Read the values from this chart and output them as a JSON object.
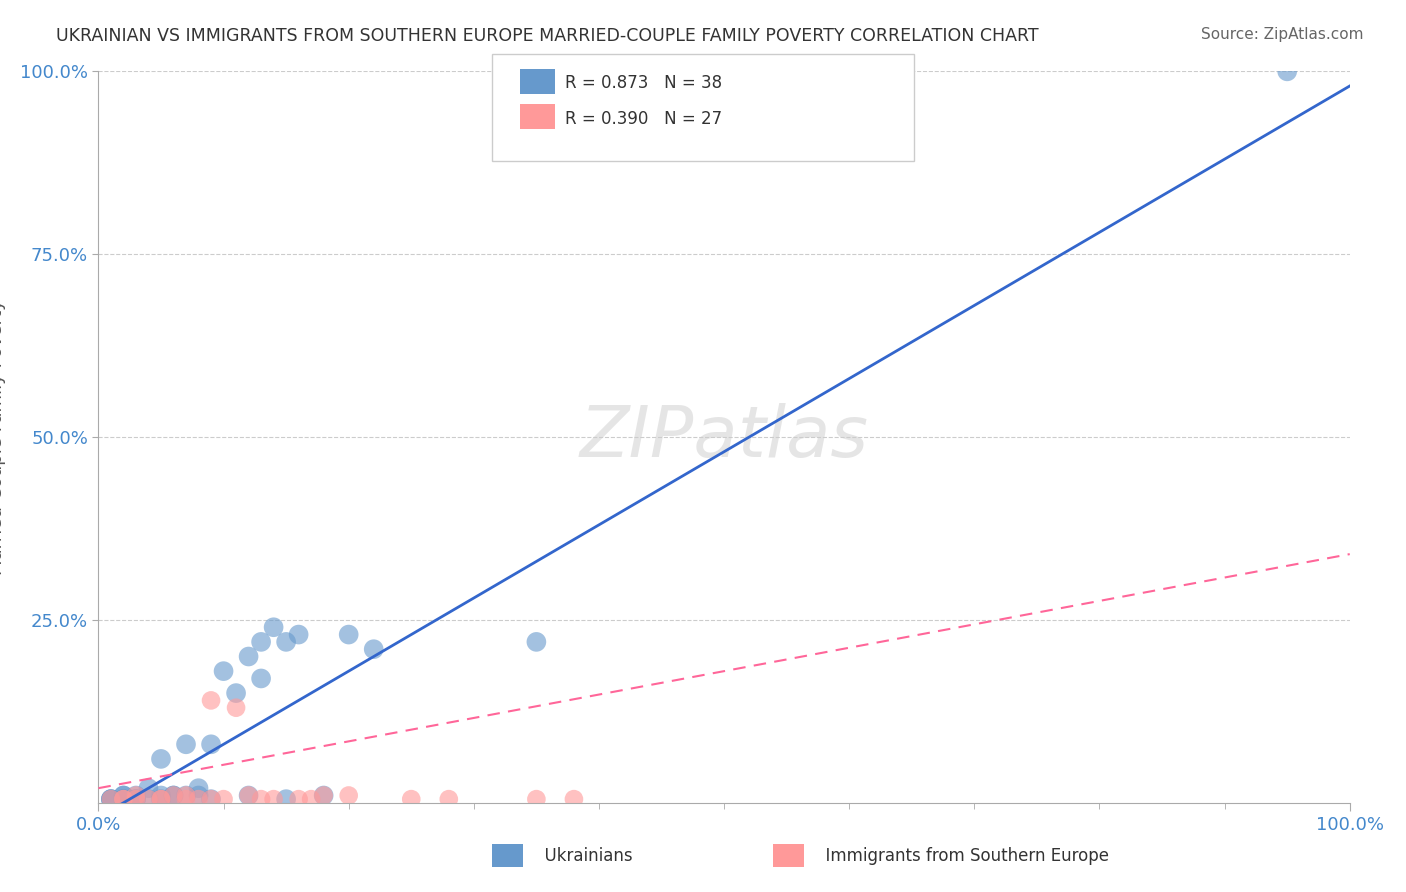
{
  "title": "UKRAINIAN VS IMMIGRANTS FROM SOUTHERN EUROPE MARRIED-COUPLE FAMILY POVERTY CORRELATION CHART",
  "source_text": "Source: ZipAtlas.com",
  "ylabel": "Married-Couple Family Poverty",
  "xlabel": "",
  "watermark": "ZIPatlas",
  "xlim": [
    0,
    1
  ],
  "ylim": [
    0,
    1
  ],
  "xtick_labels": [
    "0.0%",
    "100.0%"
  ],
  "ytick_labels": [
    "25.0%",
    "50.0%",
    "75.0%",
    "100.0%"
  ],
  "ytick_positions": [
    0.25,
    0.5,
    0.75,
    1.0
  ],
  "legend_R1": "R = 0.873",
  "legend_N1": "N = 38",
  "legend_R2": "R = 0.390",
  "legend_N2": "N = 27",
  "legend_label1": "Ukrainians",
  "legend_label2": "Immigrants from Southern Europe",
  "blue_color": "#6699CC",
  "pink_color": "#FF9999",
  "blue_line_color": "#3366CC",
  "pink_line_color": "#FF6699",
  "title_color": "#333333",
  "axis_label_color": "#555555",
  "tick_label_color": "#4488CC",
  "grid_color": "#CCCCCC",
  "watermark_color": "#CCCCCC",
  "blue_scatter_x": [
    0.02,
    0.03,
    0.04,
    0.05,
    0.01,
    0.02,
    0.03,
    0.06,
    0.08,
    0.1,
    0.12,
    0.13,
    0.14,
    0.15,
    0.16,
    0.05,
    0.07,
    0.09,
    0.11,
    0.13,
    0.02,
    0.04,
    0.06,
    0.08,
    0.2,
    0.22,
    0.35,
    0.01,
    0.03,
    0.05,
    0.07,
    0.09,
    0.12,
    0.15,
    0.18,
    0.01,
    0.02,
    0.95
  ],
  "blue_scatter_y": [
    0.01,
    0.01,
    0.02,
    0.01,
    0.005,
    0.01,
    0.005,
    0.01,
    0.02,
    0.18,
    0.2,
    0.22,
    0.24,
    0.22,
    0.23,
    0.06,
    0.08,
    0.08,
    0.15,
    0.17,
    0.005,
    0.005,
    0.01,
    0.01,
    0.23,
    0.21,
    0.22,
    0.005,
    0.005,
    0.005,
    0.01,
    0.005,
    0.01,
    0.005,
    0.01,
    0.005,
    0.005,
    1.0
  ],
  "pink_scatter_x": [
    0.01,
    0.02,
    0.03,
    0.05,
    0.07,
    0.1,
    0.12,
    0.14,
    0.18,
    0.2,
    0.04,
    0.06,
    0.08,
    0.09,
    0.11,
    0.13,
    0.16,
    0.17,
    0.02,
    0.03,
    0.05,
    0.07,
    0.09,
    0.25,
    0.28,
    0.35,
    0.38
  ],
  "pink_scatter_y": [
    0.005,
    0.005,
    0.01,
    0.005,
    0.005,
    0.005,
    0.01,
    0.005,
    0.01,
    0.01,
    0.005,
    0.01,
    0.005,
    0.14,
    0.13,
    0.005,
    0.005,
    0.005,
    0.005,
    0.005,
    0.005,
    0.01,
    0.005,
    0.005,
    0.005,
    0.005,
    0.005
  ],
  "blue_line_x": [
    0.0,
    1.0
  ],
  "blue_line_slope": 1.0,
  "blue_line_intercept": -0.02,
  "pink_line_x": [
    0.0,
    1.0
  ],
  "pink_line_slope": 0.32,
  "pink_line_intercept": 0.02
}
